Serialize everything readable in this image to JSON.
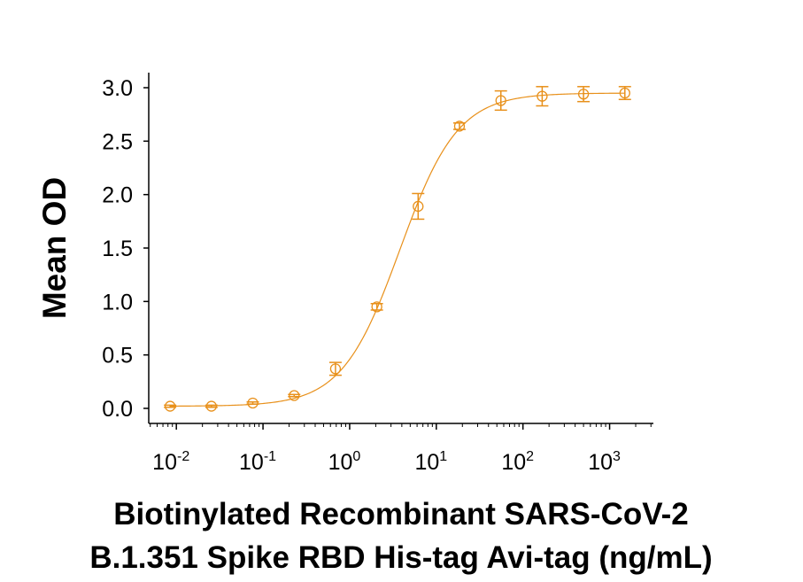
{
  "chart_data": {
    "type": "scatter",
    "title": "",
    "xlabel_lines": [
      "Biotinylated Recombinant SARS-CoV-2",
      "B.1.351 Spike RBD His-tag Avi-tag (ng/mL)"
    ],
    "ylabel": "Mean OD",
    "x_scale": "log",
    "xlim": [
      0.0048,
      3200
    ],
    "ylim": [
      0,
      3.0
    ],
    "x_ticks": [
      {
        "base": "10",
        "exp": "-2",
        "value": 0.01
      },
      {
        "base": "10",
        "exp": "-1",
        "value": 0.1
      },
      {
        "base": "10",
        "exp": "0",
        "value": 1
      },
      {
        "base": "10",
        "exp": "1",
        "value": 10
      },
      {
        "base": "10",
        "exp": "2",
        "value": 100
      },
      {
        "base": "10",
        "exp": "3",
        "value": 1000
      }
    ],
    "y_ticks": [
      "0.0",
      "0.5",
      "1.0",
      "1.5",
      "2.0",
      "2.5",
      "3.0"
    ],
    "grid": false,
    "color": "#E8901A",
    "series": [
      {
        "x": [
          0.00847,
          0.0254,
          0.0762,
          0.229,
          0.686,
          2.06,
          6.17,
          18.5,
          55.6,
          166.7,
          500,
          1500
        ],
        "y": [
          0.02,
          0.02,
          0.05,
          0.12,
          0.37,
          0.95,
          1.89,
          2.64,
          2.88,
          2.92,
          2.94,
          2.95
        ],
        "error": [
          0.01,
          0.01,
          0.01,
          0.01,
          0.06,
          0.03,
          0.12,
          0.03,
          0.09,
          0.09,
          0.07,
          0.06
        ]
      }
    ]
  }
}
